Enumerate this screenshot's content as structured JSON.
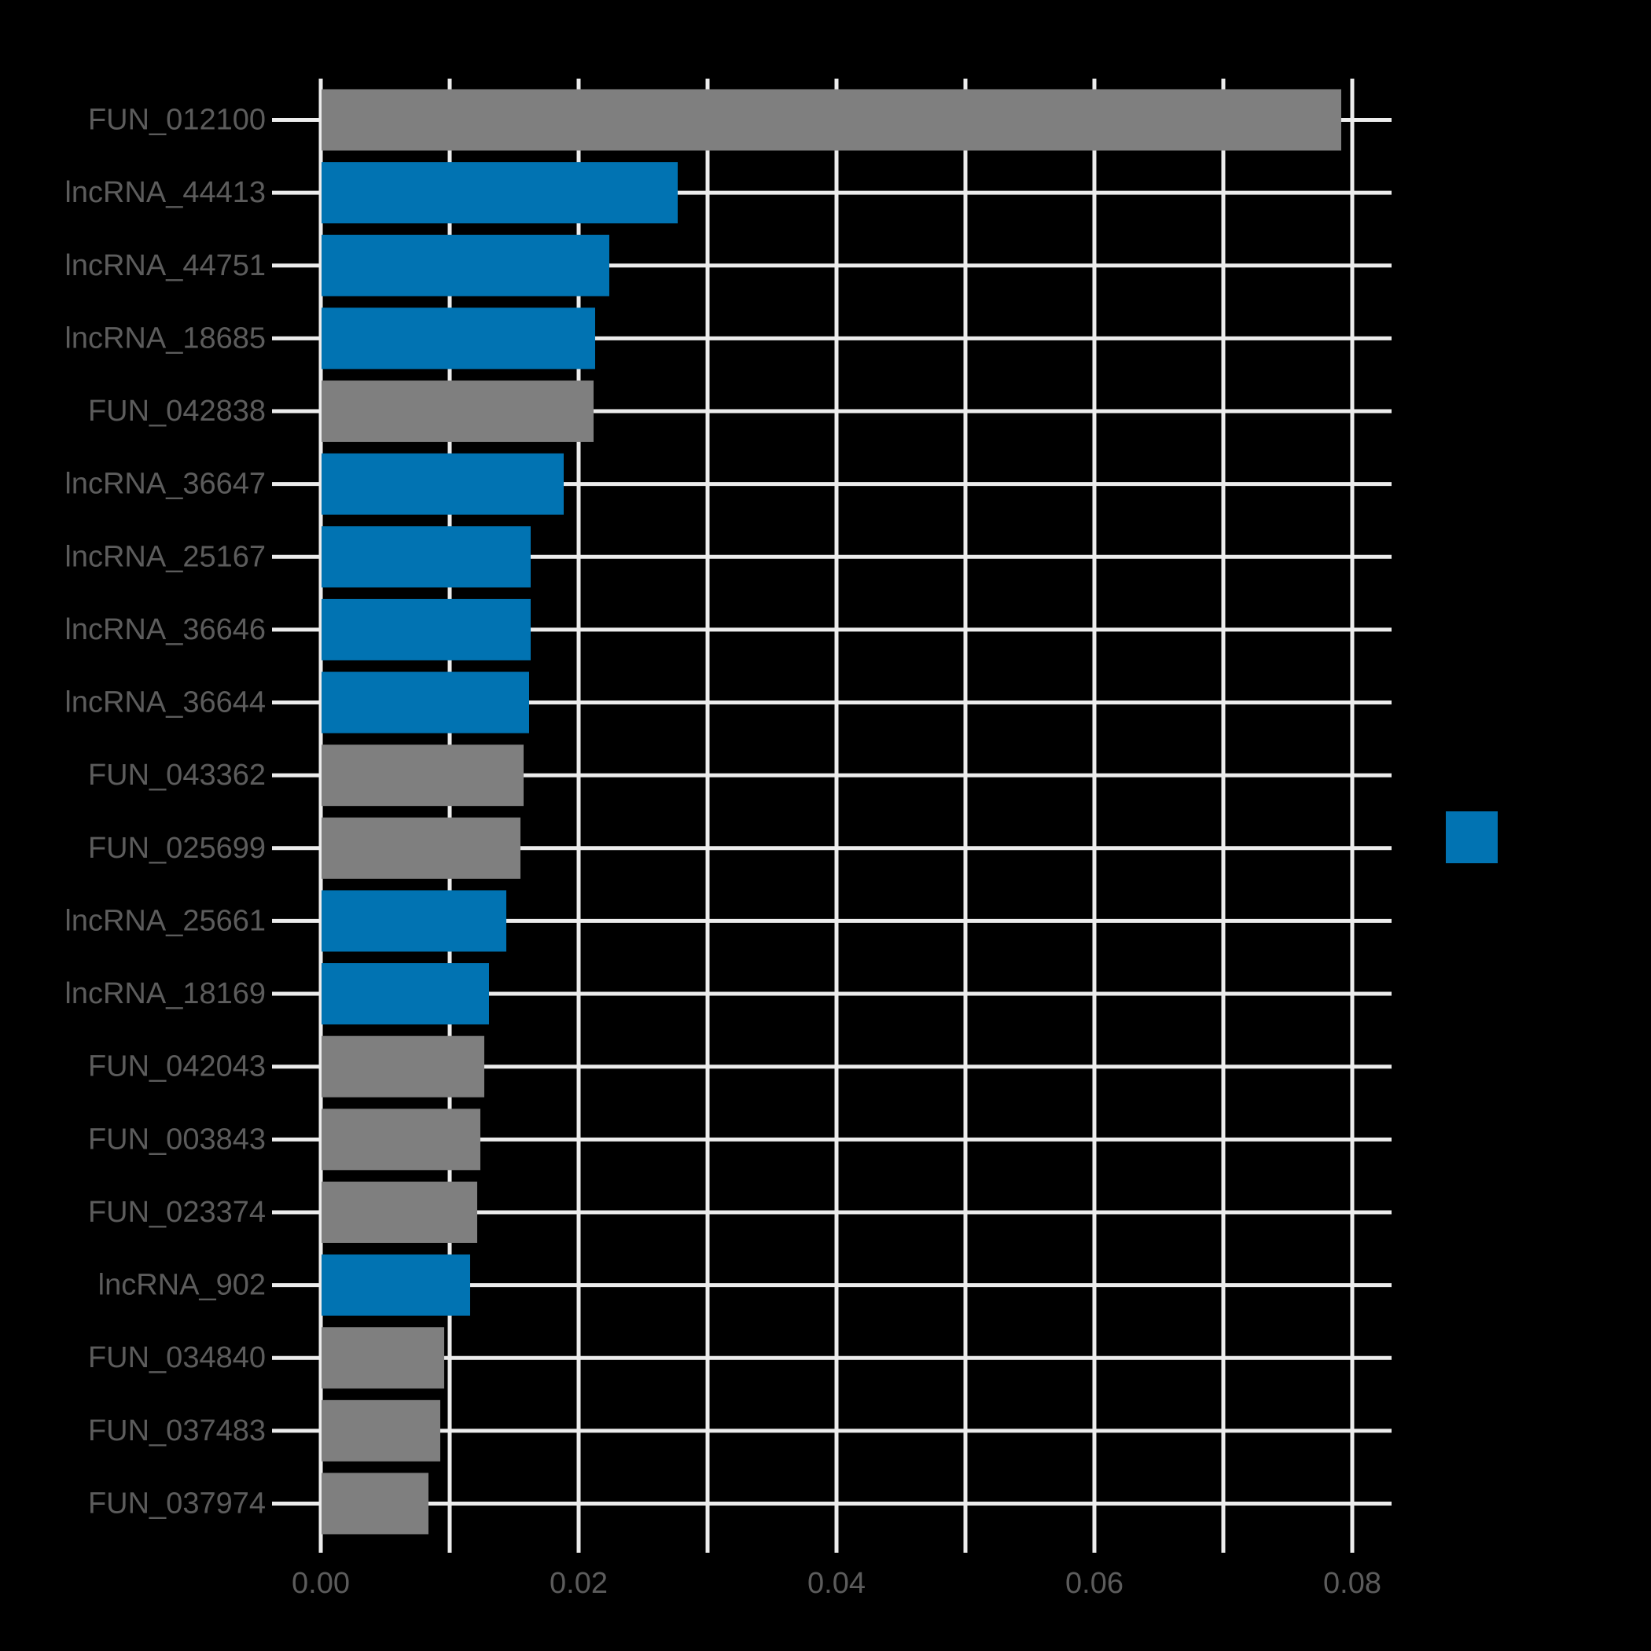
{
  "figure": {
    "background_color": "#000000",
    "title": ""
  },
  "chart_data": {
    "type": "bar",
    "orientation": "horizontal",
    "title": "",
    "xlabel": "",
    "ylabel": "",
    "xlim": [
      0,
      0.08
    ],
    "grid": true,
    "grid_color": "#ececec",
    "text_color": "#5c5c5c",
    "x_tick_labels": [
      "0.00",
      "0.02",
      "0.04",
      "0.06",
      "0.08"
    ],
    "x_tick_values": [
      0,
      0.02,
      0.04,
      0.06,
      0.08
    ],
    "x_gridline_step": 0.01,
    "categories": [
      "FUN_012100",
      "lncRNA_44413",
      "lncRNA_44751",
      "lncRNA_18685",
      "FUN_042838",
      "lncRNA_36647",
      "lncRNA_25167",
      "lncRNA_36646",
      "lncRNA_36644",
      "FUN_043362",
      "FUN_025699",
      "lncRNA_25661",
      "lncRNA_18169",
      "FUN_042043",
      "FUN_003843",
      "FUN_023374",
      "lncRNA_902",
      "FUN_034840",
      "FUN_037483",
      "FUN_037974"
    ],
    "values": [
      0.0791,
      0.0276,
      0.0223,
      0.0212,
      0.0211,
      0.0188,
      0.0162,
      0.0162,
      0.0161,
      0.0157,
      0.0154,
      0.0143,
      0.013,
      0.0126,
      0.0123,
      0.0121,
      0.0115,
      0.0095,
      0.0092,
      0.0083
    ],
    "groups": [
      "FUN",
      "lncRNA",
      "lncRNA",
      "lncRNA",
      "FUN",
      "lncRNA",
      "lncRNA",
      "lncRNA",
      "lncRNA",
      "FUN",
      "FUN",
      "lncRNA",
      "lncRNA",
      "FUN",
      "FUN",
      "FUN",
      "lncRNA",
      "FUN",
      "FUN",
      "FUN"
    ],
    "group_colors": {
      "FUN": "#7f7f7f",
      "lncRNA": "#0173b2"
    },
    "legend": {
      "position": "right-middle",
      "entries": [
        {
          "swatch_color": "#0173b2",
          "label": ""
        }
      ]
    }
  }
}
